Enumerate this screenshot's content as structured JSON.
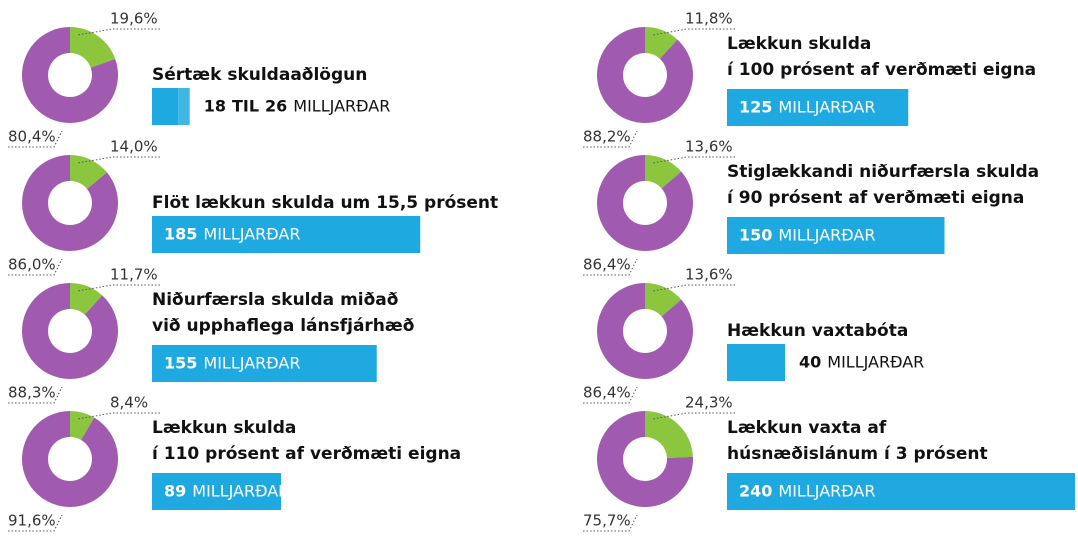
{
  "chart_data": [
    {
      "type": "donut",
      "title": [
        "Sértæk skuldaaðlögun"
      ],
      "values": [
        19.6,
        80.4
      ],
      "value_labels": [
        "19,6%",
        "80,4%"
      ],
      "colors": [
        "#8cc63f",
        "#a05bb0"
      ],
      "bar": [
        18,
        26
      ],
      "bar_range_word": "TIL",
      "unit": "MILLJARÐAR",
      "bar_color": "#1fa9e1",
      "xlim": [
        0,
        240
      ]
    },
    {
      "type": "donut",
      "title": [
        "Flöt lækkun skulda um 15,5 prósent"
      ],
      "values": [
        14.0,
        86.0
      ],
      "value_labels": [
        "14,0%",
        "86,0%"
      ],
      "colors": [
        "#8cc63f",
        "#a05bb0"
      ],
      "bar": [
        185
      ],
      "unit": "MILLJARÐAR",
      "bar_color": "#1fa9e1",
      "xlim": [
        0,
        240
      ]
    },
    {
      "type": "donut",
      "title": [
        "Niðurfærsla skulda miðað",
        "við upphaflega lánsfjárhæð"
      ],
      "values": [
        11.7,
        88.3
      ],
      "value_labels": [
        "11,7%",
        "88,3%"
      ],
      "colors": [
        "#8cc63f",
        "#a05bb0"
      ],
      "bar": [
        155
      ],
      "unit": "MILLJARÐAR",
      "bar_color": "#1fa9e1",
      "xlim": [
        0,
        240
      ]
    },
    {
      "type": "donut",
      "title": [
        "Lækkun skulda",
        "í 110 prósent af verðmæti eigna"
      ],
      "values": [
        8.4,
        91.6
      ],
      "value_labels": [
        "8,4%",
        "91,6%"
      ],
      "colors": [
        "#8cc63f",
        "#a05bb0"
      ],
      "bar": [
        89
      ],
      "unit": "MILLJARÐAR",
      "bar_color": "#1fa9e1",
      "xlim": [
        0,
        240
      ]
    },
    {
      "type": "donut",
      "title": [
        "Lækkun skulda",
        "í 100 prósent af verðmæti eigna"
      ],
      "values": [
        11.8,
        88.2
      ],
      "value_labels": [
        "11,8%",
        "88,2%"
      ],
      "colors": [
        "#8cc63f",
        "#a05bb0"
      ],
      "bar": [
        125
      ],
      "unit": "MILLJARÐAR",
      "bar_color": "#1fa9e1",
      "xlim": [
        0,
        240
      ]
    },
    {
      "type": "donut",
      "title": [
        "Stiglækkandi niðurfærsla skulda",
        "í 90 prósent af verðmæti eigna"
      ],
      "values": [
        13.6,
        86.4
      ],
      "value_labels": [
        "13,6%",
        "86,4%"
      ],
      "colors": [
        "#8cc63f",
        "#a05bb0"
      ],
      "bar": [
        150
      ],
      "unit": "MILLJARÐAR",
      "bar_color": "#1fa9e1",
      "xlim": [
        0,
        240
      ]
    },
    {
      "type": "donut",
      "title": [
        "Hækkun vaxtabóta"
      ],
      "values": [
        13.6,
        86.4
      ],
      "value_labels": [
        "13,6%",
        "86,4%"
      ],
      "colors": [
        "#8cc63f",
        "#a05bb0"
      ],
      "bar": [
        40
      ],
      "unit": "MILLJARÐAR",
      "bar_color": "#1fa9e1",
      "xlim": [
        0,
        240
      ]
    },
    {
      "type": "donut",
      "title": [
        "Lækkun vaxta af",
        "húsnæðislánum í 3 prósent"
      ],
      "values": [
        24.3,
        75.7
      ],
      "value_labels": [
        "24,3%",
        "75,7%"
      ],
      "colors": [
        "#8cc63f",
        "#a05bb0"
      ],
      "bar": [
        240
      ],
      "unit": "MILLJARÐAR",
      "bar_color": "#1fa9e1",
      "xlim": [
        0,
        240
      ]
    }
  ]
}
